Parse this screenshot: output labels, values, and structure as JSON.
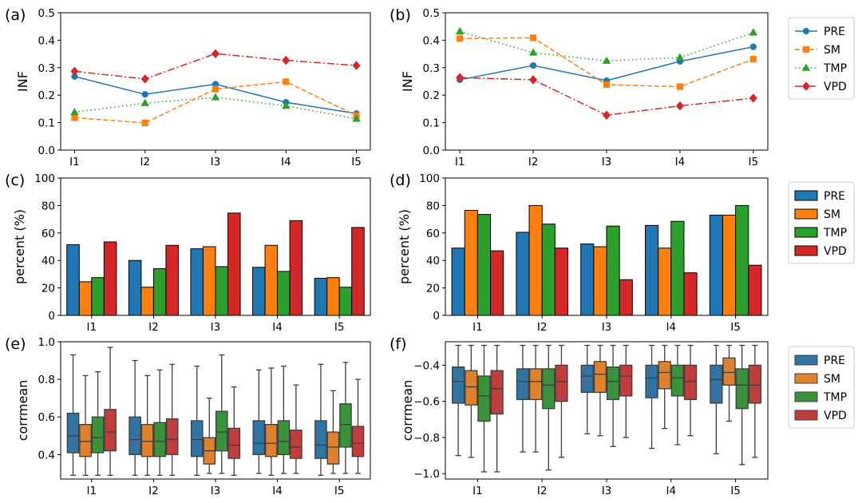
{
  "figure": {
    "type": "composite",
    "colors": {
      "PRE": "#1f77b4",
      "SM": "#ff7f0e",
      "TMP": "#2ca02c",
      "VPD": "#d62728"
    },
    "box_colors": {
      "PRE": "#3274a1",
      "SM": "#e1812c",
      "TMP": "#3a923a",
      "VPD": "#c03d3e"
    }
  },
  "chart_data": [
    {
      "id": "a",
      "panel_label": "(a)",
      "type": "line",
      "categories": [
        "I1",
        "I2",
        "I3",
        "I4",
        "I5"
      ],
      "ylabel": "INF",
      "ylim": [
        0,
        0.5
      ],
      "yticks": [
        0.0,
        0.1,
        0.2,
        0.3,
        0.4,
        0.5
      ],
      "ytick_labels": [
        "0.0",
        "0.1",
        "0.2",
        "0.3",
        "0.4",
        "0.5"
      ],
      "legend": "none",
      "series": [
        {
          "name": "PRE",
          "values": [
            0.268,
            0.203,
            0.24,
            0.174,
            0.133
          ]
        },
        {
          "name": "SM",
          "values": [
            0.118,
            0.099,
            0.222,
            0.249,
            0.126
          ]
        },
        {
          "name": "TMP",
          "values": [
            0.138,
            0.171,
            0.192,
            0.161,
            0.114
          ]
        },
        {
          "name": "VPD",
          "values": [
            0.287,
            0.259,
            0.351,
            0.327,
            0.308
          ]
        }
      ]
    },
    {
      "id": "b",
      "panel_label": "(b)",
      "type": "line",
      "categories": [
        "I1",
        "I2",
        "I3",
        "I4",
        "I5"
      ],
      "ylabel": "INF",
      "ylim": [
        0,
        0.5
      ],
      "yticks": [
        0.0,
        0.1,
        0.2,
        0.3,
        0.4,
        0.5
      ],
      "ytick_labels": [
        "0.0",
        "0.1",
        "0.2",
        "0.3",
        "0.4",
        "0.5"
      ],
      "legend": "right",
      "series": [
        {
          "name": "PRE",
          "values": [
            0.256,
            0.308,
            0.253,
            0.323,
            0.376
          ]
        },
        {
          "name": "SM",
          "values": [
            0.406,
            0.409,
            0.238,
            0.231,
            0.331
          ]
        },
        {
          "name": "TMP",
          "values": [
            0.432,
            0.355,
            0.325,
            0.337,
            0.428
          ]
        },
        {
          "name": "VPD",
          "values": [
            0.264,
            0.256,
            0.127,
            0.161,
            0.189
          ]
        }
      ]
    },
    {
      "id": "c",
      "panel_label": "(c)",
      "type": "bar",
      "categories": [
        "I1",
        "I2",
        "I3",
        "I4",
        "I5"
      ],
      "ylabel": "percent (%)",
      "ylim": [
        0,
        100
      ],
      "yticks": [
        0,
        20,
        40,
        60,
        80,
        100
      ],
      "ytick_labels": [
        "0",
        "20",
        "40",
        "60",
        "80",
        "100"
      ],
      "legend": "none",
      "series": [
        {
          "name": "PRE",
          "values": [
            51.5,
            40,
            48.5,
            35,
            27
          ]
        },
        {
          "name": "SM",
          "values": [
            24.5,
            20.5,
            50,
            51,
            27.5
          ]
        },
        {
          "name": "TMP",
          "values": [
            27.5,
            34,
            35.5,
            32,
            20.5
          ]
        },
        {
          "name": "VPD",
          "values": [
            53.5,
            51,
            74.5,
            69,
            64
          ]
        }
      ]
    },
    {
      "id": "d",
      "panel_label": "(d)",
      "type": "bar",
      "categories": [
        "I1",
        "I2",
        "I3",
        "I4",
        "I5"
      ],
      "ylabel": "percent (%)",
      "ylim": [
        0,
        100
      ],
      "yticks": [
        0,
        20,
        40,
        60,
        80,
        100
      ],
      "ytick_labels": [
        "0",
        "20",
        "40",
        "60",
        "80",
        "100"
      ],
      "legend": "right",
      "series": [
        {
          "name": "PRE",
          "values": [
            49,
            60.5,
            52,
            65.5,
            73
          ]
        },
        {
          "name": "SM",
          "values": [
            76.5,
            80,
            50,
            49,
            73
          ]
        },
        {
          "name": "TMP",
          "values": [
            73.5,
            66.5,
            65,
            68.5,
            80
          ]
        },
        {
          "name": "VPD",
          "values": [
            47,
            49,
            26,
            31,
            36.5
          ]
        }
      ]
    },
    {
      "id": "e",
      "panel_label": "(e)",
      "type": "box",
      "categories": [
        "I1",
        "I2",
        "I3",
        "I4",
        "I5"
      ],
      "ylabel": "corrmean",
      "ylim": [
        0.27,
        1.0
      ],
      "yticks": [
        0.4,
        0.6,
        0.8,
        1.0
      ],
      "ytick_labels": [
        "0.4",
        "0.6",
        "0.8",
        "1.0"
      ],
      "legend": "none",
      "series": [
        {
          "name": "PRE",
          "boxes": [
            [
              0.29,
              0.41,
              0.5,
              0.62,
              0.93
            ],
            [
              0.29,
              0.4,
              0.48,
              0.6,
              0.9
            ],
            [
              0.29,
              0.39,
              0.48,
              0.58,
              0.87
            ],
            [
              0.3,
              0.4,
              0.46,
              0.58,
              0.85
            ],
            [
              0.29,
              0.38,
              0.45,
              0.58,
              0.88
            ]
          ]
        },
        {
          "name": "SM",
          "boxes": [
            [
              0.29,
              0.39,
              0.47,
              0.56,
              0.82
            ],
            [
              0.29,
              0.39,
              0.47,
              0.56,
              0.82
            ],
            [
              0.3,
              0.35,
              0.42,
              0.49,
              0.7
            ],
            [
              0.29,
              0.39,
              0.46,
              0.56,
              0.86
            ],
            [
              0.3,
              0.35,
              0.44,
              0.52,
              0.74
            ]
          ]
        },
        {
          "name": "TMP",
          "boxes": [
            [
              0.29,
              0.41,
              0.49,
              0.6,
              0.84
            ],
            [
              0.29,
              0.39,
              0.47,
              0.57,
              0.85
            ],
            [
              0.3,
              0.42,
              0.52,
              0.63,
              0.93
            ],
            [
              0.3,
              0.4,
              0.47,
              0.58,
              0.87
            ],
            [
              0.3,
              0.44,
              0.56,
              0.67,
              0.89
            ]
          ]
        },
        {
          "name": "VPD",
          "boxes": [
            [
              0.29,
              0.42,
              0.52,
              0.64,
              0.97
            ],
            [
              0.29,
              0.4,
              0.48,
              0.59,
              0.88
            ],
            [
              0.29,
              0.38,
              0.45,
              0.54,
              0.76
            ],
            [
              0.3,
              0.38,
              0.44,
              0.53,
              0.77
            ],
            [
              0.3,
              0.39,
              0.46,
              0.55,
              0.8
            ]
          ]
        }
      ]
    },
    {
      "id": "f",
      "panel_label": "(f)",
      "type": "box",
      "categories": [
        "I1",
        "I2",
        "I3",
        "I4",
        "I5"
      ],
      "ylabel": "corrmean",
      "ylim": [
        -1.03,
        -0.27
      ],
      "yticks": [
        -1.0,
        -0.8,
        -0.6,
        -0.4
      ],
      "ytick_labels": [
        "−1.0",
        "−0.8",
        "−0.6",
        "−0.4"
      ],
      "legend": "right",
      "series": [
        {
          "name": "PRE",
          "boxes": [
            [
              -0.9,
              -0.61,
              -0.49,
              -0.41,
              -0.29
            ],
            [
              -0.88,
              -0.59,
              -0.49,
              -0.42,
              -0.29
            ],
            [
              -0.78,
              -0.55,
              -0.46,
              -0.4,
              -0.29
            ],
            [
              -0.86,
              -0.58,
              -0.47,
              -0.4,
              -0.29
            ],
            [
              -0.89,
              -0.61,
              -0.48,
              -0.4,
              -0.29
            ]
          ]
        },
        {
          "name": "SM",
          "boxes": [
            [
              -0.91,
              -0.62,
              -0.52,
              -0.43,
              -0.29
            ],
            [
              -0.88,
              -0.59,
              -0.49,
              -0.42,
              -0.29
            ],
            [
              -0.79,
              -0.55,
              -0.45,
              -0.38,
              -0.29
            ],
            [
              -0.75,
              -0.53,
              -0.44,
              -0.38,
              -0.29
            ],
            [
              -0.71,
              -0.51,
              -0.44,
              -0.36,
              -0.29
            ]
          ]
        },
        {
          "name": "TMP",
          "boxes": [
            [
              -0.99,
              -0.71,
              -0.57,
              -0.46,
              -0.29
            ],
            [
              -0.98,
              -0.64,
              -0.51,
              -0.42,
              -0.29
            ],
            [
              -0.85,
              -0.59,
              -0.49,
              -0.41,
              -0.29
            ],
            [
              -0.84,
              -0.57,
              -0.47,
              -0.4,
              -0.29
            ],
            [
              -0.95,
              -0.64,
              -0.51,
              -0.42,
              -0.29
            ]
          ]
        },
        {
          "name": "VPD",
          "boxes": [
            [
              -0.99,
              -0.67,
              -0.53,
              -0.43,
              -0.29
            ],
            [
              -0.91,
              -0.6,
              -0.49,
              -0.4,
              -0.29
            ],
            [
              -0.8,
              -0.57,
              -0.46,
              -0.4,
              -0.29
            ],
            [
              -0.79,
              -0.59,
              -0.49,
              -0.4,
              -0.29
            ],
            [
              -0.91,
              -0.61,
              -0.51,
              -0.4,
              -0.29
            ]
          ]
        }
      ]
    }
  ]
}
